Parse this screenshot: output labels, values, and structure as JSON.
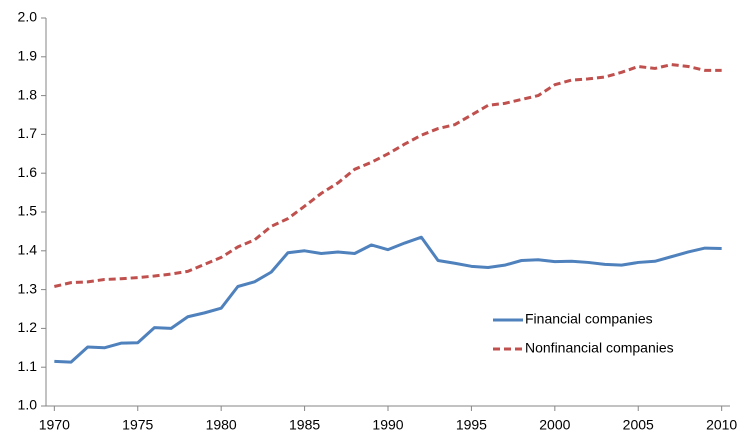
{
  "chart_data": {
    "type": "line",
    "x": [
      1970,
      1971,
      1972,
      1973,
      1974,
      1975,
      1976,
      1977,
      1978,
      1979,
      1980,
      1981,
      1982,
      1983,
      1984,
      1985,
      1986,
      1987,
      1988,
      1989,
      1990,
      1991,
      1992,
      1993,
      1994,
      1995,
      1996,
      1997,
      1998,
      1999,
      2000,
      2001,
      2002,
      2003,
      2004,
      2005,
      2006,
      2007,
      2008,
      2009,
      2010
    ],
    "series": [
      {
        "name": "Financial companies",
        "color": "#4f81bd",
        "dash": false,
        "values": [
          1.115,
          1.113,
          1.152,
          1.15,
          1.162,
          1.163,
          1.202,
          1.2,
          1.23,
          1.24,
          1.252,
          1.308,
          1.32,
          1.345,
          1.395,
          1.4,
          1.393,
          1.397,
          1.393,
          1.415,
          1.403,
          1.42,
          1.435,
          1.375,
          1.368,
          1.36,
          1.357,
          1.363,
          1.375,
          1.377,
          1.372,
          1.373,
          1.37,
          1.365,
          1.363,
          1.37,
          1.373,
          1.385,
          1.397,
          1.407,
          1.406
        ]
      },
      {
        "name": "Nonfinancial companies",
        "color": "#c0504d",
        "dash": true,
        "values": [
          1.308,
          1.318,
          1.32,
          1.326,
          1.328,
          1.331,
          1.335,
          1.34,
          1.347,
          1.365,
          1.383,
          1.41,
          1.428,
          1.463,
          1.483,
          1.515,
          1.548,
          1.575,
          1.61,
          1.628,
          1.65,
          1.675,
          1.698,
          1.715,
          1.725,
          1.75,
          1.775,
          1.78,
          1.79,
          1.8,
          1.828,
          1.84,
          1.843,
          1.848,
          1.86,
          1.875,
          1.87,
          1.88,
          1.875,
          1.865,
          1.865
        ]
      }
    ],
    "xlim": [
      1969.5,
      2010.5
    ],
    "xticks": [
      1970,
      1975,
      1980,
      1985,
      1990,
      1995,
      2000,
      2005,
      2010
    ],
    "ylim": [
      1.0,
      2.0
    ],
    "yticks": [
      {
        "value": 1.0,
        "label": "1.0"
      },
      1.1,
      1.2,
      1.3,
      1.4,
      1.5,
      1.6,
      1.7,
      1.8,
      1.9,
      {
        "value": 2.0,
        "label": "2.0"
      }
    ],
    "grid": false,
    "legend": "inside-lower-right"
  }
}
